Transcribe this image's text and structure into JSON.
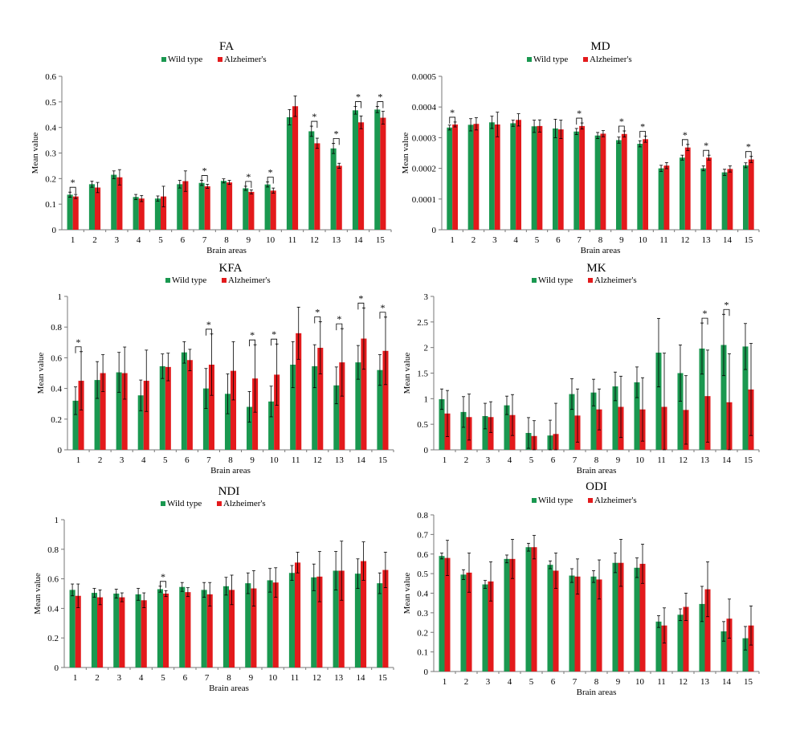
{
  "colors": {
    "wild_type": "#1a9850",
    "alzheimers": "#e31a1c",
    "axis": "#777777",
    "error": "#000000"
  },
  "chart_data": [
    {
      "type": "bar",
      "title": "FA",
      "xlabel": "Brain areas",
      "ylabel": "Mean value",
      "legend": "top-center",
      "categories": [
        "1",
        "2",
        "3",
        "4",
        "5",
        "6",
        "7",
        "8",
        "9",
        "10",
        "11",
        "12",
        "13",
        "14",
        "15"
      ],
      "ylim": [
        0,
        0.6
      ],
      "yticks": [
        "0",
        "0.1",
        "0.2",
        "0.3",
        "0.4",
        "0.5",
        "0.6"
      ],
      "series": [
        {
          "name": "Wild type",
          "values": [
            0.137,
            0.178,
            0.215,
            0.128,
            0.122,
            0.178,
            0.183,
            0.191,
            0.162,
            0.177,
            0.44,
            0.385,
            0.318,
            0.467,
            0.47
          ],
          "errors": [
            0.01,
            0.012,
            0.015,
            0.01,
            0.01,
            0.015,
            0.01,
            0.008,
            0.008,
            0.01,
            0.03,
            0.02,
            0.02,
            0.015,
            0.012
          ]
        },
        {
          "name": "Alzheimer's",
          "values": [
            0.13,
            0.165,
            0.205,
            0.122,
            0.13,
            0.19,
            0.17,
            0.185,
            0.148,
            0.153,
            0.483,
            0.338,
            0.25,
            0.42,
            0.438
          ],
          "errors": [
            0.008,
            0.02,
            0.03,
            0.012,
            0.04,
            0.04,
            0.008,
            0.008,
            0.008,
            0.01,
            0.04,
            0.02,
            0.01,
            0.025,
            0.025
          ]
        }
      ],
      "significance": [
        "1",
        "7",
        "9",
        "10",
        "12",
        "13",
        "14",
        "15"
      ],
      "significance_mark": "*"
    },
    {
      "type": "bar",
      "title": "MD",
      "xlabel": "Brain areas",
      "ylabel": "Mean value",
      "legend": "top-center",
      "categories": [
        "1",
        "2",
        "3",
        "4",
        "5",
        "6",
        "7",
        "8",
        "9",
        "10",
        "11",
        "12",
        "13",
        "14",
        "15"
      ],
      "ylim": [
        0,
        0.0005
      ],
      "yticks": [
        "0",
        "0.0001",
        "0.0002",
        "0.0003",
        "0.0004",
        "0.0005"
      ],
      "series": [
        {
          "name": "Wild type",
          "values": [
            0.000333,
            0.000342,
            0.00035,
            0.000347,
            0.000337,
            0.00033,
            0.00032,
            0.000307,
            0.000292,
            0.00028,
            0.0002,
            0.000235,
            0.0002,
            0.000187,
            0.00021
          ],
          "errors": [
            8e-06,
            2e-05,
            2e-05,
            1e-05,
            2e-05,
            3e-05,
            1e-05,
            1e-05,
            1e-05,
            1e-05,
            1e-05,
            8e-06,
            8e-06,
            1e-05,
            8e-06
          ]
        },
        {
          "name": "Alzheimer's",
          "values": [
            0.000343,
            0.000345,
            0.000343,
            0.000358,
            0.000338,
            0.000327,
            0.000338,
            0.000313,
            0.000312,
            0.000295,
            0.000209,
            0.000268,
            0.000235,
            0.000198,
            0.000229
          ],
          "errors": [
            8e-06,
            2e-05,
            4e-05,
            2e-05,
            2e-05,
            3e-05,
            1e-05,
            1e-05,
            1e-05,
            1e-05,
            1e-05,
            1e-05,
            8e-06,
            1e-05,
            1e-05
          ]
        }
      ],
      "significance": [
        "1",
        "7",
        "9",
        "10",
        "12",
        "13",
        "15"
      ],
      "significance_mark": "*"
    },
    {
      "type": "bar",
      "title": "KFA",
      "xlabel": "Brain areas",
      "ylabel": "Mean value",
      "legend": "top-center",
      "categories": [
        "1",
        "2",
        "3",
        "4",
        "5",
        "6",
        "7",
        "8",
        "9",
        "10",
        "11",
        "12",
        "13",
        "14",
        "15"
      ],
      "ylim": [
        0,
        1
      ],
      "yticks": [
        "0",
        "0.2",
        "0.4",
        "0.6",
        "0.8",
        "1"
      ],
      "series": [
        {
          "name": "Wild type",
          "values": [
            0.32,
            0.455,
            0.505,
            0.355,
            0.545,
            0.635,
            0.4,
            0.365,
            0.28,
            0.315,
            0.555,
            0.545,
            0.42,
            0.57,
            0.52
          ],
          "errors": [
            0.09,
            0.12,
            0.13,
            0.1,
            0.08,
            0.07,
            0.13,
            0.13,
            0.1,
            0.1,
            0.15,
            0.14,
            0.12,
            0.11,
            0.1
          ]
        },
        {
          "name": "Alzheimer's",
          "values": [
            0.45,
            0.5,
            0.5,
            0.45,
            0.54,
            0.585,
            0.555,
            0.515,
            0.465,
            0.49,
            0.76,
            0.665,
            0.57,
            0.725,
            0.645
          ],
          "errors": [
            0.19,
            0.12,
            0.17,
            0.2,
            0.09,
            0.07,
            0.2,
            0.19,
            0.22,
            0.2,
            0.17,
            0.17,
            0.22,
            0.2,
            0.22
          ]
        }
      ],
      "significance": [
        "1",
        "7",
        "9",
        "10",
        "12",
        "13",
        "14",
        "15"
      ],
      "significance_mark": "*"
    },
    {
      "type": "bar",
      "title": "MK",
      "xlabel": "Brain areas",
      "ylabel": "Mean value",
      "legend": "top-center",
      "categories": [
        "1",
        "2",
        "3",
        "4",
        "5",
        "6",
        "7",
        "8",
        "9",
        "10",
        "11",
        "12",
        "13",
        "14",
        "15"
      ],
      "ylim": [
        0,
        3
      ],
      "yticks": [
        "0",
        "0.5",
        "1",
        "1.5",
        "2",
        "2.5",
        "3"
      ],
      "series": [
        {
          "name": "Wild type",
          "values": [
            0.99,
            0.74,
            0.66,
            0.87,
            0.33,
            0.28,
            1.09,
            1.12,
            1.24,
            1.32,
            1.9,
            1.5,
            1.98,
            2.05,
            2.02
          ],
          "errors": [
            0.2,
            0.3,
            0.25,
            0.18,
            0.3,
            0.3,
            0.3,
            0.26,
            0.28,
            0.3,
            0.67,
            0.55,
            0.5,
            0.6,
            0.45
          ]
        },
        {
          "name": "Alzheimer's",
          "values": [
            0.71,
            0.64,
            0.64,
            0.68,
            0.27,
            0.31,
            0.67,
            0.79,
            0.84,
            0.79,
            0.84,
            0.78,
            1.05,
            0.93,
            1.18
          ],
          "errors": [
            0.45,
            0.45,
            0.3,
            0.4,
            0.3,
            0.6,
            0.52,
            0.4,
            0.6,
            0.62,
            1.05,
            0.67,
            0.9,
            0.95,
            0.9
          ]
        }
      ],
      "significance": [
        "13",
        "14"
      ],
      "significance_mark": "*"
    },
    {
      "type": "bar",
      "title": "NDI",
      "xlabel": "Brain areas",
      "ylabel": "Mean value",
      "legend": "top-center",
      "categories": [
        "1",
        "2",
        "3",
        "4",
        "5",
        "6",
        "7",
        "8",
        "9",
        "10",
        "11",
        "12",
        "13",
        "14",
        "15"
      ],
      "ylim": [
        0,
        1
      ],
      "yticks": [
        "0",
        "0.2",
        "0.4",
        "0.6",
        "0.8",
        "1"
      ],
      "series": [
        {
          "name": "Wild type",
          "values": [
            0.525,
            0.505,
            0.5,
            0.495,
            0.53,
            0.545,
            0.525,
            0.55,
            0.57,
            0.59,
            0.64,
            0.61,
            0.655,
            0.635,
            0.57
          ],
          "errors": [
            0.04,
            0.03,
            0.03,
            0.04,
            0.02,
            0.03,
            0.05,
            0.06,
            0.07,
            0.08,
            0.05,
            0.09,
            0.13,
            0.1,
            0.07
          ]
        },
        {
          "name": "Alzheimer's",
          "values": [
            0.485,
            0.475,
            0.475,
            0.455,
            0.5,
            0.51,
            0.495,
            0.525,
            0.535,
            0.575,
            0.71,
            0.615,
            0.655,
            0.72,
            0.66
          ],
          "errors": [
            0.08,
            0.05,
            0.03,
            0.05,
            0.02,
            0.03,
            0.08,
            0.1,
            0.12,
            0.1,
            0.07,
            0.17,
            0.2,
            0.13,
            0.12
          ]
        }
      ],
      "significance": [
        "5"
      ],
      "significance_mark": "*"
    },
    {
      "type": "bar",
      "title": "ODI",
      "xlabel": "Brain areas",
      "ylabel": "Mean value",
      "legend": "top-center",
      "categories": [
        "1",
        "2",
        "3",
        "4",
        "5",
        "6",
        "7",
        "8",
        "9",
        "10",
        "11",
        "12",
        "13",
        "14",
        "15"
      ],
      "ylim": [
        0,
        0.8
      ],
      "yticks": [
        "0",
        "0.1",
        "0.2",
        "0.3",
        "0.4",
        "0.5",
        "0.6",
        "0.7",
        "0.8"
      ],
      "series": [
        {
          "name": "Wild type",
          "values": [
            0.59,
            0.495,
            0.445,
            0.575,
            0.635,
            0.545,
            0.49,
            0.485,
            0.555,
            0.53,
            0.255,
            0.29,
            0.345,
            0.205,
            0.17
          ],
          "errors": [
            0.015,
            0.025,
            0.02,
            0.02,
            0.02,
            0.02,
            0.035,
            0.03,
            0.05,
            0.05,
            0.03,
            0.03,
            0.09,
            0.05,
            0.06
          ]
        },
        {
          "name": "Alzheimer's",
          "values": [
            0.58,
            0.505,
            0.46,
            0.575,
            0.635,
            0.515,
            0.485,
            0.47,
            0.555,
            0.55,
            0.235,
            0.33,
            0.42,
            0.27,
            0.235
          ],
          "errors": [
            0.09,
            0.1,
            0.1,
            0.1,
            0.06,
            0.09,
            0.09,
            0.1,
            0.12,
            0.1,
            0.09,
            0.07,
            0.14,
            0.1,
            0.1
          ]
        }
      ],
      "significance": [],
      "significance_mark": "*"
    }
  ]
}
